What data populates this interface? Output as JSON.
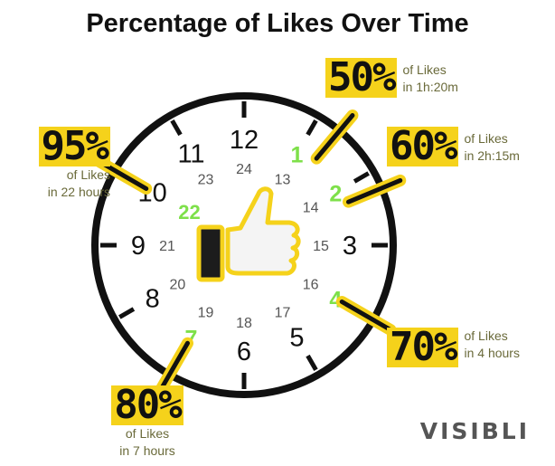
{
  "chart_data": {
    "type": "clock",
    "title": "Percentage of Likes Over Time",
    "hour_labels": [
      {
        "hour": 12,
        "text": "12"
      },
      {
        "hour": 1,
        "text": "1"
      },
      {
        "hour": 2,
        "text": "2"
      },
      {
        "hour": 3,
        "text": "3"
      },
      {
        "hour": 4,
        "text": "4"
      },
      {
        "hour": 5,
        "text": "5"
      },
      {
        "hour": 6,
        "text": "6"
      },
      {
        "hour": 7,
        "text": "7"
      },
      {
        "hour": 8,
        "text": "8"
      },
      {
        "hour": 9,
        "text": "9"
      },
      {
        "hour": 10,
        "text": "10"
      },
      {
        "hour": 11,
        "text": "11"
      }
    ],
    "hour24_labels": [
      {
        "hour": 12,
        "text": "24"
      },
      {
        "hour": 1,
        "text": "13"
      },
      {
        "hour": 2,
        "text": "14"
      },
      {
        "hour": 3,
        "text": "15"
      },
      {
        "hour": 4,
        "text": "16"
      },
      {
        "hour": 5,
        "text": "17"
      },
      {
        "hour": 6,
        "text": "18"
      },
      {
        "hour": 7,
        "text": "19"
      },
      {
        "hour": 8,
        "text": "20"
      },
      {
        "hour": 9,
        "text": "21"
      },
      {
        "hour": 11,
        "text": "23"
      }
    ],
    "highlighted_hours": [
      1,
      2,
      4,
      7,
      22
    ],
    "milestones": [
      {
        "percent": "50%",
        "of": "of Likes",
        "time": "in 1h:20m",
        "hours": 1.33
      },
      {
        "percent": "60%",
        "of": "of Likes",
        "time": "in 2h:15m",
        "hours": 2.25
      },
      {
        "percent": "70%",
        "of": "of Likes",
        "time": "in 4 hours",
        "hours": 4
      },
      {
        "percent": "80%",
        "of": "of Likes",
        "time": "in 7 hours",
        "hours": 7
      },
      {
        "percent": "95%",
        "of": "of Likes",
        "time": "in 22 hours",
        "hours": 22
      }
    ]
  },
  "colors": {
    "highlight": "#7ee04a",
    "marker": "#f5d21b",
    "ring": "#111111",
    "thumb_fill": "#f5d21b",
    "thumb_inner": "#f4f4f4"
  },
  "icons": [
    "thumbs-up-icon"
  ],
  "logo": "VISIBLI"
}
